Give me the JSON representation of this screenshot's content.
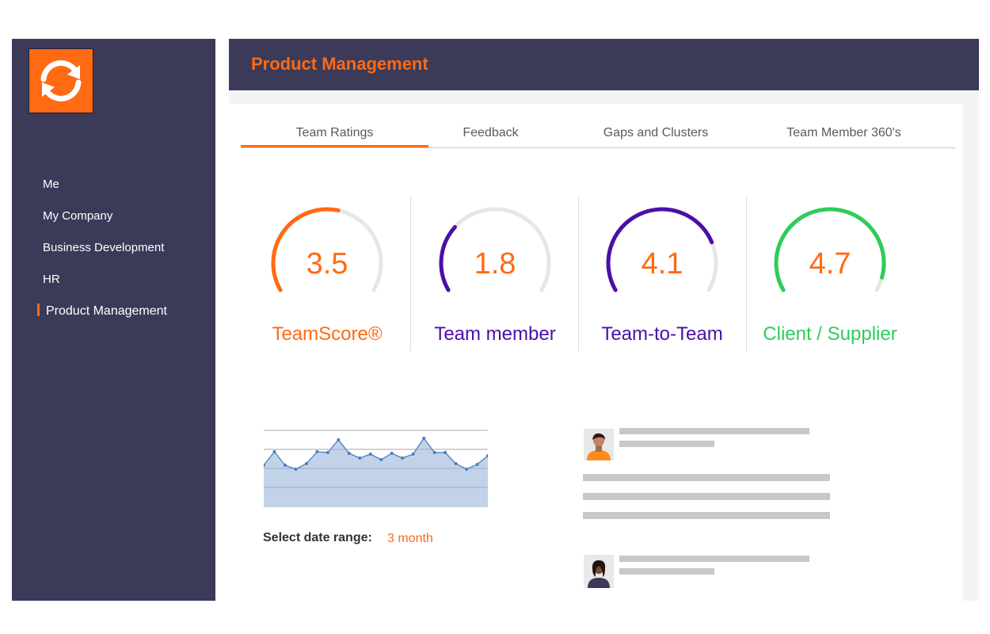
{
  "sidebar": {
    "logo_icon": "refresh-icon",
    "items": [
      {
        "label": "Me"
      },
      {
        "label": "My Company"
      },
      {
        "label": "Business Development"
      },
      {
        "label": "HR"
      },
      {
        "label": "Product Management",
        "active": true
      }
    ]
  },
  "header": {
    "title": "Product Management"
  },
  "tabs": [
    {
      "label": "Team Ratings",
      "active": true
    },
    {
      "label": "Feedback"
    },
    {
      "label": "Gaps and Clusters"
    },
    {
      "label": "Team Member 360's"
    }
  ],
  "gauges": [
    {
      "value": "3.5",
      "label": "TeamScore®",
      "fraction": 0.55,
      "color": "#ff6a13"
    },
    {
      "value": "1.8",
      "label": "Team member",
      "fraction": 0.3,
      "color": "#4b0fa8"
    },
    {
      "value": "4.1",
      "label": "Team-to-Team",
      "fraction": 0.78,
      "color": "#4b0fa8"
    },
    {
      "value": "4.7",
      "label": "Client / Supplier",
      "fraction": 0.94,
      "color": "#2ecc5b"
    }
  ],
  "colors": {
    "accent": "#ff6a13",
    "navy": "#3b3a59",
    "track": "#e6e6e6"
  },
  "chart_data": {
    "type": "area",
    "values": [
      53,
      70,
      53,
      48,
      55,
      70,
      69,
      85,
      68,
      62,
      67,
      60,
      68,
      62,
      67,
      87,
      69,
      69,
      55,
      48,
      54,
      65
    ],
    "ylim": [
      0,
      100
    ],
    "grid": true
  },
  "date_range": {
    "label": "Select date range:",
    "value": "3 month"
  },
  "feed": {
    "avatars": [
      "user-avatar-male",
      "user-avatar-female"
    ]
  }
}
